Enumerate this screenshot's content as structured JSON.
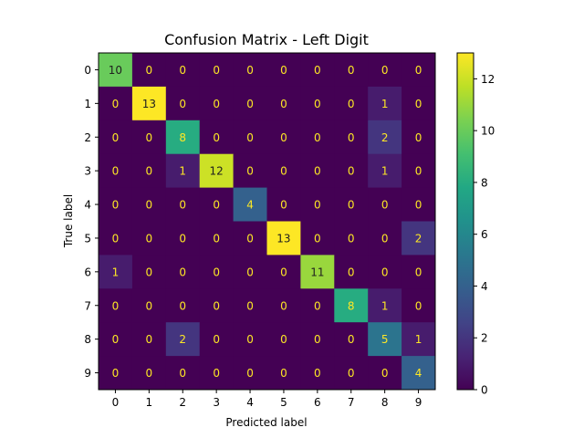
{
  "chart_data": {
    "type": "heatmap",
    "title": "Confusion Matrix - Left Digit",
    "xlabel": "Predicted label",
    "ylabel": "True label",
    "x_categories": [
      "0",
      "1",
      "2",
      "3",
      "4",
      "5",
      "6",
      "7",
      "8",
      "9"
    ],
    "y_categories": [
      "0",
      "1",
      "2",
      "3",
      "4",
      "5",
      "6",
      "7",
      "8",
      "9"
    ],
    "matrix": [
      [
        10,
        0,
        0,
        0,
        0,
        0,
        0,
        0,
        0,
        0
      ],
      [
        0,
        13,
        0,
        0,
        0,
        0,
        0,
        0,
        1,
        0
      ],
      [
        0,
        0,
        8,
        0,
        0,
        0,
        0,
        0,
        2,
        0
      ],
      [
        0,
        0,
        1,
        12,
        0,
        0,
        0,
        0,
        1,
        0
      ],
      [
        0,
        0,
        0,
        0,
        4,
        0,
        0,
        0,
        0,
        0
      ],
      [
        0,
        0,
        0,
        0,
        0,
        13,
        0,
        0,
        0,
        2
      ],
      [
        1,
        0,
        0,
        0,
        0,
        0,
        11,
        0,
        0,
        0
      ],
      [
        0,
        0,
        0,
        0,
        0,
        0,
        0,
        8,
        1,
        0
      ],
      [
        0,
        0,
        2,
        0,
        0,
        0,
        0,
        0,
        5,
        1
      ],
      [
        0,
        0,
        0,
        0,
        0,
        0,
        0,
        0,
        0,
        4
      ]
    ],
    "colormap": "viridis",
    "value_range": [
      0,
      13
    ],
    "colorbar_ticks": [
      "0",
      "2",
      "4",
      "6",
      "8",
      "10",
      "12"
    ],
    "grid": false
  }
}
